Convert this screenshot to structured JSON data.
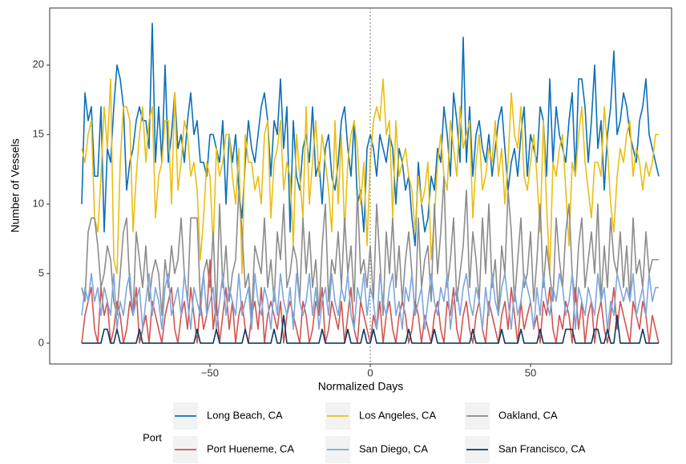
{
  "chart_data": {
    "type": "line",
    "x_label": "Normalized Days",
    "y_label": "Number of Vessels",
    "legend_title": "Port",
    "legend_position": "bottom",
    "grid": false,
    "vline": 0,
    "xlim": [
      -100,
      94
    ],
    "ylim": [
      -1.5,
      24.1
    ],
    "xticks": [
      {
        "value": -50,
        "label": "−50"
      },
      0,
      50
    ],
    "yticks": [
      0,
      5,
      10,
      15,
      20
    ],
    "x": [
      -90,
      -89,
      -88,
      -87,
      -86,
      -85,
      -84,
      -83,
      -82,
      -81,
      -80,
      -79,
      -78,
      -77,
      -76,
      -75,
      -74,
      -73,
      -72,
      -71,
      -70,
      -69,
      -68,
      -67,
      -66,
      -65,
      -64,
      -63,
      -62,
      -61,
      -60,
      -59,
      -58,
      -57,
      -56,
      -55,
      -54,
      -53,
      -52,
      -51,
      -50,
      -49,
      -48,
      -47,
      -46,
      -45,
      -44,
      -43,
      -42,
      -41,
      -40,
      -39,
      -38,
      -37,
      -36,
      -35,
      -34,
      -33,
      -32,
      -31,
      -30,
      -29,
      -28,
      -27,
      -26,
      -25,
      -24,
      -23,
      -22,
      -21,
      -20,
      -19,
      -18,
      -17,
      -16,
      -15,
      -14,
      -13,
      -12,
      -11,
      -10,
      -9,
      -8,
      -7,
      -6,
      -5,
      -4,
      -3,
      -2,
      -1,
      0,
      1,
      2,
      3,
      4,
      5,
      6,
      7,
      8,
      9,
      10,
      11,
      12,
      13,
      14,
      15,
      16,
      17,
      18,
      19,
      20,
      21,
      22,
      23,
      24,
      25,
      26,
      27,
      28,
      29,
      30,
      31,
      32,
      33,
      34,
      35,
      36,
      37,
      38,
      39,
      40,
      41,
      42,
      43,
      44,
      45,
      46,
      47,
      48,
      49,
      50,
      51,
      52,
      53,
      54,
      55,
      56,
      57,
      58,
      59,
      60,
      61,
      62,
      63,
      64,
      65,
      66,
      67,
      68,
      69,
      70,
      71,
      72,
      73,
      74,
      75,
      76,
      77,
      78,
      79,
      80,
      81,
      82,
      83,
      84,
      85,
      86,
      87,
      88,
      89,
      90
    ],
    "series": [
      {
        "name": "Long Beach, CA",
        "color": "#0b6fb8",
        "values": [
          10,
          18,
          16,
          17,
          12,
          12,
          17,
          8,
          14,
          13,
          17,
          20,
          19,
          17,
          11,
          13,
          14,
          16,
          17,
          16,
          16,
          14,
          23,
          13,
          17,
          13,
          20,
          13,
          15,
          18,
          14,
          15,
          13,
          16,
          18,
          15,
          16,
          13,
          13,
          12,
          15,
          15,
          14,
          13,
          16,
          10,
          15,
          13,
          15,
          11,
          9,
          13,
          16,
          14,
          13,
          15,
          17,
          18,
          16,
          12,
          16,
          15,
          19,
          14,
          17,
          8,
          16,
          12,
          11,
          14,
          15,
          13,
          17,
          12,
          13,
          10,
          14,
          15,
          12,
          11,
          13,
          16,
          17,
          14,
          12,
          16,
          10,
          11,
          8,
          14,
          15,
          14,
          12,
          15,
          14,
          13,
          15,
          14,
          10,
          14,
          13,
          11,
          12,
          9,
          7,
          13,
          10,
          8,
          9,
          12,
          11,
          14,
          13,
          17,
          15,
          12,
          18,
          16,
          13,
          22,
          13,
          17,
          12,
          15,
          16,
          14,
          13,
          15,
          12,
          14,
          16,
          17,
          14,
          11,
          13,
          14,
          12,
          15,
          17,
          12,
          15,
          14,
          13,
          17,
          16,
          12,
          19,
          13,
          17,
          15,
          14,
          13,
          16,
          18,
          12,
          19,
          19,
          17,
          13,
          16,
          20,
          14,
          16,
          11,
          15,
          17,
          21,
          15,
          16,
          18,
          17,
          15,
          14,
          13,
          16,
          17,
          19,
          15,
          14,
          13,
          12
        ]
      },
      {
        "name": "Los Angeles, CA",
        "color": "#e9bf14",
        "values": [
          14,
          13,
          15,
          16,
          9,
          8,
          12,
          17,
          14,
          19,
          6,
          5,
          13,
          17,
          17,
          16,
          8,
          12,
          15,
          17,
          13,
          16,
          17,
          9,
          12,
          13,
          16,
          16,
          10,
          18,
          11,
          13,
          16,
          15,
          12,
          13,
          11,
          6,
          9,
          13,
          12,
          7,
          14,
          12,
          13,
          15,
          15,
          12,
          10,
          14,
          5,
          15,
          13,
          13,
          11,
          12,
          10,
          15,
          16,
          9,
          13,
          14,
          16,
          11,
          13,
          12,
          7,
          15,
          12,
          9,
          17,
          10,
          13,
          16,
          12,
          15,
          13,
          11,
          8,
          16,
          10,
          15,
          8,
          13,
          15,
          16,
          14,
          10,
          13,
          7,
          13,
          16,
          17,
          16,
          19,
          15,
          16,
          9,
          16,
          12,
          13,
          14,
          12,
          11,
          8,
          12,
          10,
          11,
          13,
          6,
          9,
          13,
          15,
          12,
          11,
          16,
          14,
          12,
          17,
          14,
          15,
          16,
          9,
          13,
          15,
          11,
          12,
          14,
          13,
          16,
          12,
          14,
          10,
          13,
          18,
          15,
          14,
          17,
          12,
          11,
          13,
          15,
          12,
          8,
          16,
          10,
          5,
          13,
          12,
          14,
          15,
          11,
          7,
          13,
          12,
          15,
          17,
          13,
          11,
          9,
          13,
          13,
          12,
          17,
          14,
          10,
          8,
          12,
          14,
          13,
          15,
          16,
          12,
          14,
          13,
          11,
          13,
          12,
          13,
          15,
          15
        ]
      },
      {
        "name": "Oakland, CA",
        "color": "#8c8c8c",
        "values": [
          4,
          3,
          8,
          9,
          9,
          7,
          4,
          5,
          7,
          6,
          3,
          2,
          5,
          8,
          9,
          4,
          2,
          8,
          6,
          4,
          7,
          3,
          5,
          6,
          5,
          2,
          6,
          4,
          7,
          5,
          6,
          9,
          5,
          3,
          9,
          9,
          9,
          3,
          5,
          6,
          4,
          8,
          2,
          10,
          4,
          7,
          3,
          5,
          6,
          11,
          8,
          4,
          5,
          2,
          7,
          6,
          5,
          9,
          4,
          6,
          3,
          8,
          6,
          10,
          4,
          5,
          7,
          6,
          3,
          9,
          5,
          8,
          4,
          6,
          2,
          7,
          10,
          3,
          6,
          5,
          8,
          4,
          9,
          5,
          7,
          3,
          11,
          5,
          6,
          4,
          7,
          3,
          10,
          6,
          2,
          8,
          5,
          9,
          4,
          7,
          3,
          6,
          8,
          5,
          2,
          9,
          4,
          6,
          7,
          3,
          10,
          5,
          8,
          12,
          4,
          6,
          9,
          3,
          5,
          7,
          11,
          4,
          8,
          6,
          3,
          9,
          5,
          10,
          4,
          6,
          2,
          7,
          5,
          11,
          8,
          3,
          6,
          9,
          4,
          5,
          8,
          3,
          6,
          10,
          4,
          7,
          5,
          3,
          9,
          6,
          4,
          8,
          10,
          5,
          3,
          7,
          9,
          4,
          6,
          8,
          5,
          10,
          3,
          7,
          4,
          9,
          6,
          5,
          8,
          4,
          7,
          3,
          9,
          5,
          6,
          4,
          8,
          5,
          6,
          6,
          6
        ]
      },
      {
        "name": "Port Hueneme, CA",
        "color": "#d05550",
        "values": [
          0,
          2,
          3,
          4,
          1,
          0,
          4,
          2,
          3,
          0,
          1,
          3,
          2,
          0,
          1,
          3,
          2,
          4,
          0,
          1,
          2,
          0,
          3,
          2,
          1,
          0,
          2,
          3,
          4,
          1,
          0,
          2,
          3,
          1,
          4,
          2,
          0,
          3,
          1,
          2,
          6,
          1,
          3,
          0,
          2,
          4,
          1,
          3,
          0,
          2,
          3,
          1,
          0,
          2,
          3,
          1,
          4,
          0,
          2,
          3,
          2,
          1,
          3,
          0,
          2,
          3,
          2,
          1,
          0,
          3,
          2,
          0,
          1,
          3,
          2,
          4,
          0,
          1,
          3,
          2,
          1,
          3,
          0,
          2,
          4,
          1,
          0,
          3,
          2,
          1,
          0,
          2,
          1,
          3,
          0,
          2,
          3,
          1,
          0,
          2,
          3,
          2,
          0,
          1,
          3,
          2,
          0,
          2,
          1,
          0,
          2,
          3,
          1,
          0,
          3,
          2,
          4,
          1,
          0,
          2,
          3,
          1,
          0,
          2,
          3,
          1,
          0,
          3,
          2,
          1,
          0,
          2,
          3,
          1,
          4,
          2,
          0,
          3,
          1,
          2,
          3,
          1,
          2,
          0,
          3,
          2,
          4,
          1,
          0,
          2,
          1,
          3,
          2,
          0,
          4,
          1,
          3,
          0,
          2,
          3,
          0,
          2,
          3,
          1,
          0,
          2,
          4,
          1,
          3,
          2,
          1,
          0,
          3,
          2,
          1,
          3,
          2,
          0,
          2,
          1,
          0
        ]
      },
      {
        "name": "San Diego, CA",
        "color": "#7ea7da",
        "values": [
          2,
          4,
          3,
          5,
          3,
          4,
          2,
          4,
          3,
          2,
          5,
          1,
          3,
          2,
          4,
          5,
          2,
          3,
          4,
          1,
          3,
          5,
          2,
          4,
          3,
          1,
          4,
          5,
          2,
          3,
          4,
          2,
          5,
          3,
          1,
          4,
          3,
          2,
          5,
          2,
          3,
          4,
          1,
          3,
          5,
          2,
          4,
          3,
          2,
          5,
          2,
          3,
          4,
          1,
          5,
          3,
          2,
          4,
          3,
          1,
          4,
          2,
          5,
          3,
          2,
          4,
          1,
          5,
          3,
          2,
          3,
          5,
          2,
          4,
          1,
          3,
          4,
          2,
          5,
          3,
          2,
          4,
          3,
          5,
          2,
          1,
          4,
          3,
          5,
          2,
          4,
          3,
          1,
          5,
          3,
          2,
          4,
          5,
          2,
          3,
          1,
          4,
          3,
          5,
          2,
          3,
          4,
          1,
          3,
          5,
          3,
          2,
          4,
          3,
          5,
          1,
          3,
          4,
          2,
          4,
          5,
          3,
          2,
          4,
          3,
          1,
          4,
          2,
          5,
          3,
          2,
          4,
          5,
          3,
          1,
          4,
          2,
          3,
          5,
          4,
          3,
          1,
          4,
          2,
          5,
          3,
          2,
          4,
          3,
          5,
          4,
          2,
          3,
          5,
          1,
          4,
          3,
          2,
          4,
          3,
          2,
          5,
          3,
          4,
          1,
          3,
          2,
          5,
          4,
          3,
          4,
          3,
          5,
          2,
          3,
          4,
          2,
          5,
          3,
          4,
          4
        ]
      },
      {
        "name": "San Francisco, CA",
        "color": "#0d3a5f",
        "values": [
          0,
          0,
          0,
          0,
          0,
          0,
          0,
          1,
          1,
          0,
          0,
          1,
          0,
          0,
          0,
          0,
          0,
          0,
          1,
          0,
          0,
          0,
          0,
          0,
          0,
          0,
          0,
          0,
          0,
          0,
          0,
          0,
          0,
          0,
          0,
          0,
          1,
          0,
          0,
          0,
          0,
          0,
          1,
          0,
          0,
          0,
          0,
          0,
          0,
          0,
          0,
          1,
          0,
          0,
          0,
          0,
          0,
          0,
          0,
          0,
          1,
          0,
          0,
          2,
          0,
          0,
          0,
          0,
          0,
          0,
          0,
          0,
          0,
          0,
          0,
          1,
          0,
          0,
          0,
          0,
          0,
          0,
          0,
          1,
          0,
          0,
          0,
          0,
          1,
          0,
          0,
          1,
          0,
          0,
          0,
          0,
          0,
          0,
          0,
          0,
          0,
          0,
          1,
          0,
          0,
          0,
          0,
          0,
          0,
          0,
          1,
          0,
          0,
          0,
          0,
          0,
          0,
          0,
          0,
          0,
          0,
          0,
          1,
          0,
          0,
          0,
          0,
          0,
          0,
          0,
          0,
          1,
          0,
          0,
          0,
          0,
          0,
          1,
          0,
          0,
          0,
          0,
          0,
          1,
          0,
          0,
          0,
          0,
          0,
          0,
          0,
          1,
          1,
          1,
          0,
          0,
          0,
          0,
          0,
          0,
          1,
          1,
          0,
          0,
          1,
          0,
          0,
          2,
          0,
          0,
          0,
          0,
          0,
          0,
          0,
          1,
          0,
          0,
          0,
          0,
          0
        ]
      }
    ]
  }
}
